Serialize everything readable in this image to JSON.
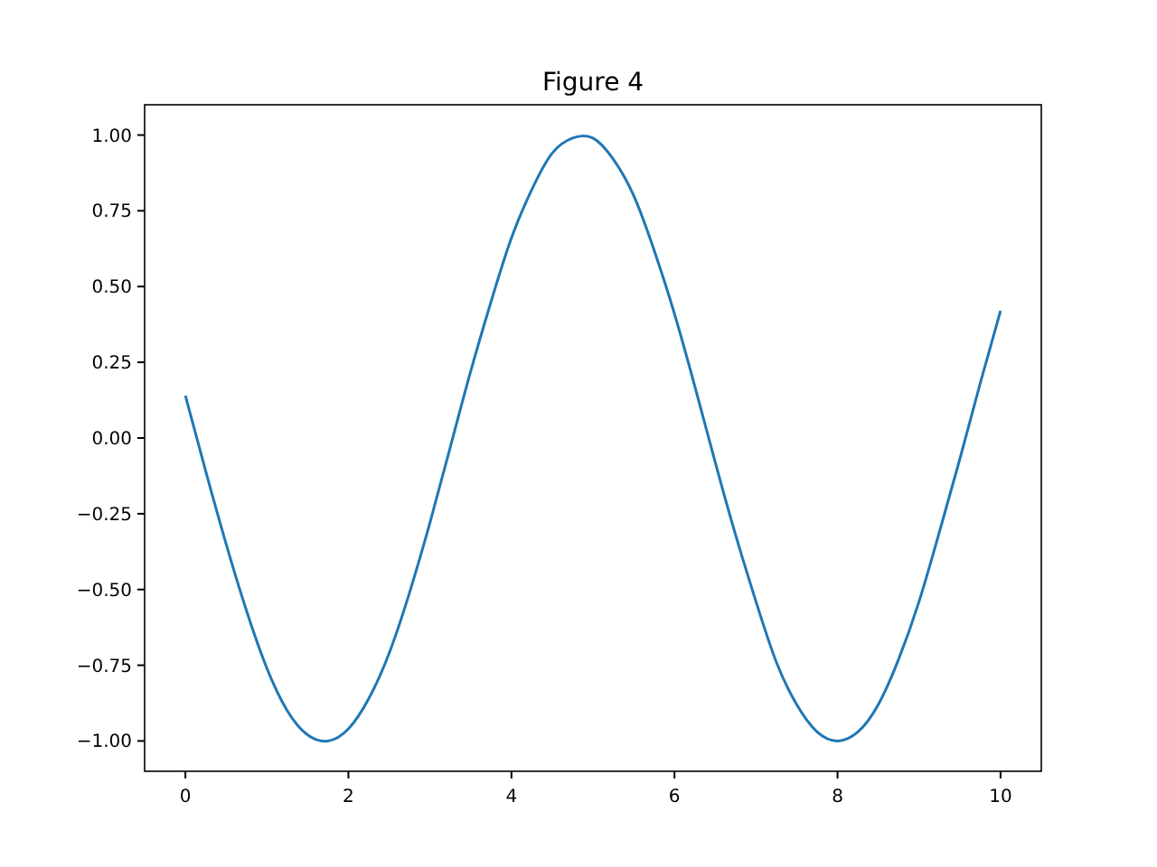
{
  "chart_data": {
    "type": "line",
    "title": "Figure 4",
    "x": [
      0,
      0.25,
      0.5,
      0.75,
      1,
      1.25,
      1.5,
      1.75,
      2,
      2.25,
      2.5,
      2.75,
      3,
      3.25,
      3.5,
      3.75,
      4,
      4.25,
      4.5,
      4.75,
      5,
      5.25,
      5.5,
      5.75,
      6,
      6.25,
      6.5,
      6.75,
      7,
      7.25,
      7.5,
      7.75,
      8,
      8.25,
      8.5,
      8.75,
      9,
      9.25,
      9.5,
      9.75,
      10
    ],
    "series": [
      {
        "color": "#1f77b4",
        "values": [
          0.14,
          -0.11,
          -0.35,
          -0.57,
          -0.76,
          -0.9,
          -0.98,
          -1,
          -0.96,
          -0.86,
          -0.71,
          -0.51,
          -0.28,
          -0.03,
          0.22,
          0.45,
          0.66,
          0.82,
          0.94,
          0.99,
          0.99,
          0.92,
          0.8,
          0.62,
          0.41,
          0.17,
          -0.08,
          -0.32,
          -0.54,
          -0.74,
          -0.88,
          -0.97,
          -1,
          -0.97,
          -0.88,
          -0.73,
          -0.54,
          -0.31,
          -0.07,
          0.18,
          0.42
        ]
      }
    ],
    "xlim": [
      -0.5,
      10.5
    ],
    "ylim": [
      -1.1,
      1.1
    ],
    "xticks": [
      0,
      2,
      4,
      6,
      8,
      10
    ],
    "yticks": [
      {
        "value": -1,
        "label": "−1.00"
      },
      {
        "value": -0.75,
        "label": "−0.75"
      },
      {
        "value": -0.5,
        "label": "−0.50"
      },
      {
        "value": -0.25,
        "label": "−0.25"
      },
      {
        "value": 0,
        "label": "0.00"
      },
      {
        "value": 0.25,
        "label": "0.25"
      },
      {
        "value": 0.5,
        "label": "0.50"
      },
      {
        "value": 0.75,
        "label": "0.75"
      },
      {
        "value": 1,
        "label": "1.00"
      }
    ],
    "grid": false
  }
}
